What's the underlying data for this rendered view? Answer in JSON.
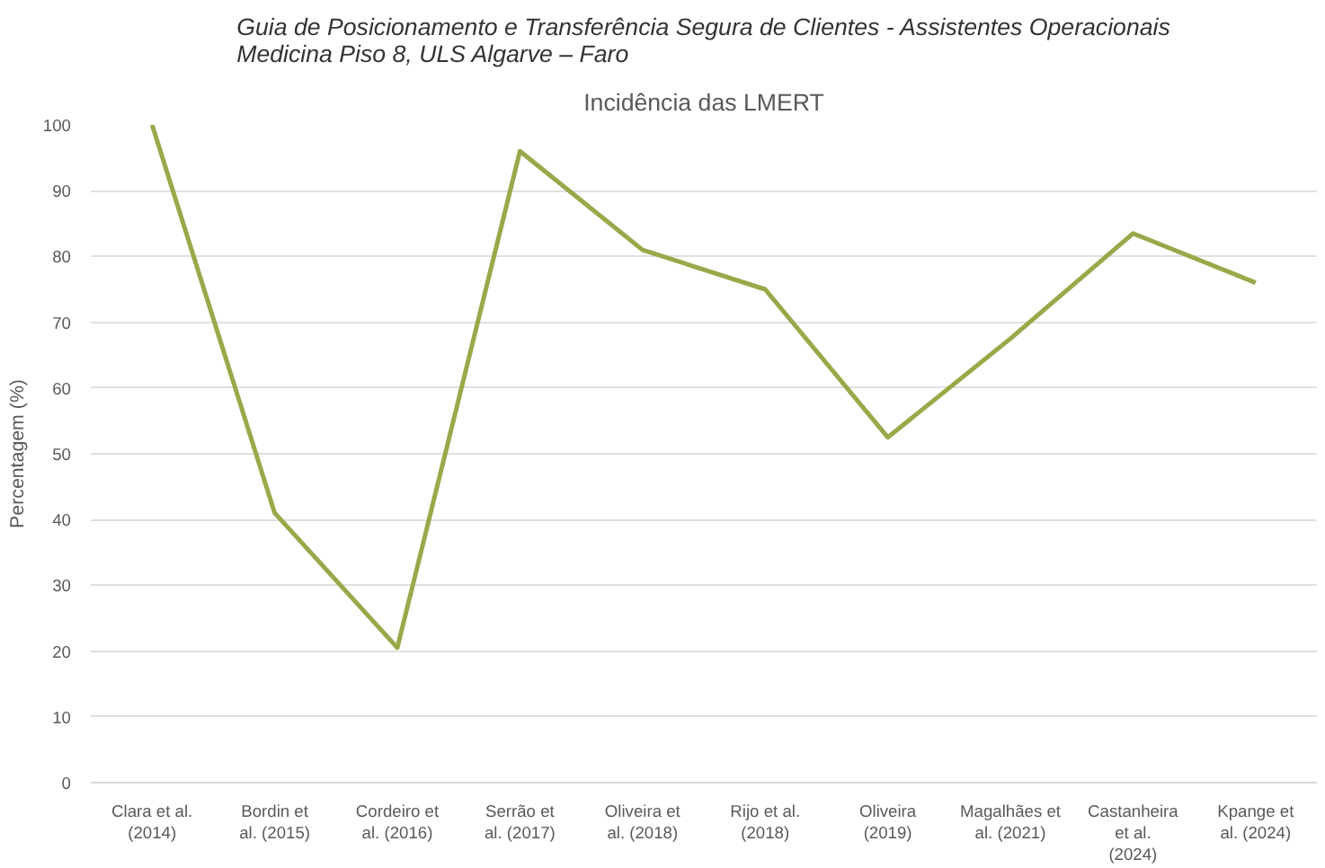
{
  "chart_data": {
    "type": "line",
    "title": "Guia de Posicionamento e Transferência Segura de Clientes - Assistentes Operacionais\nMedicina Piso 8, ULS Algarve – Faro",
    "subtitle": "Incidência das LMERT",
    "ylabel": "Percentagem (%)",
    "categories": [
      "Clara et al. (2014)",
      "Bordin et al. (2015)",
      "Cordeiro et al. (2016)",
      "Serrão et al. (2017)",
      "Oliveira et al. (2018)",
      "Rijo et al. (2018)",
      "Oliveira (2019)",
      "Magalhães et al. (2021)",
      "Castanheira et al. (2024)",
      "Kpange et al. (2024)"
    ],
    "series": [
      {
        "color": "#9aa84a",
        "values": [
          100,
          41,
          20.5,
          96,
          81,
          75,
          52.5,
          67.5,
          83.5,
          76
        ]
      }
    ],
    "ylim": [
      0,
      100
    ],
    "yticks": [
      0,
      10,
      20,
      30,
      40,
      50,
      60,
      70,
      80,
      90,
      100
    ],
    "grid": "y",
    "marker": "none",
    "line_style": "solid"
  }
}
